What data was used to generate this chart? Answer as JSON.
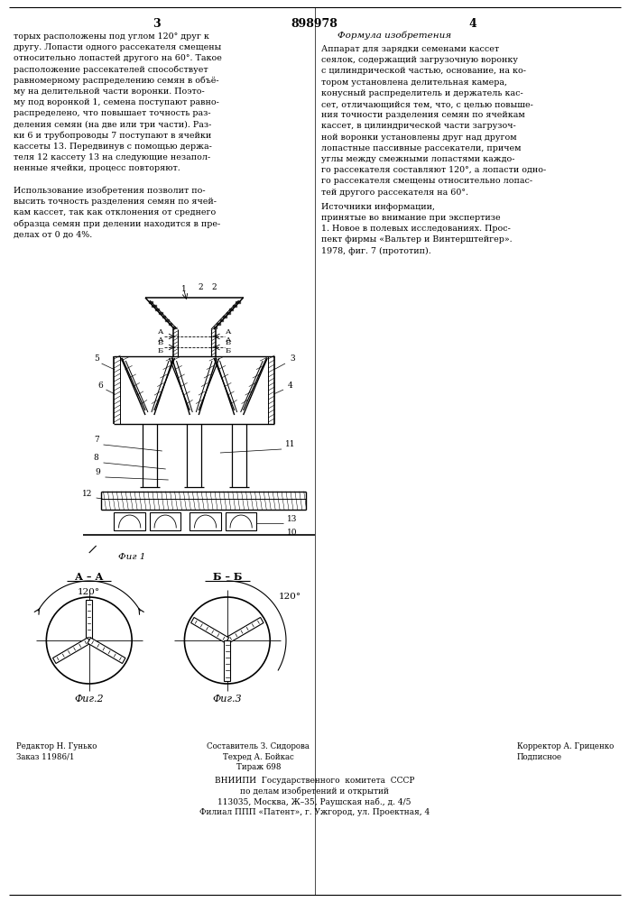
{
  "page_width": 7.07,
  "page_height": 10.0,
  "bg_color": "#ffffff",
  "text_color": "#000000",
  "patent_number": "898978",
  "page_left_number": "3",
  "page_right_number": "4",
  "formula_title": "Формула изобретения",
  "left_text": [
    "торых расположены под углом 120° друг к",
    "другу. Лопасти одного рассекателя смещены",
    "относительно лопастей другого на 60°. Такое",
    "расположение рассекателей способствует",
    "равномерному распределению семян в объё-",
    "му на делительной части воронки. Поэто-",
    "му под воронкой 1, семена поступают равно-",
    "распределено, что повышает точность раз-",
    "деления семян (на две или три части). Раз-",
    "ки 6 и трубопроводы 7 поступают в ячейки",
    "кассеты 13. Передвинув с помощью держа-",
    "теля 12 кассету 13 на следующие незапол-",
    "ненные ячейки, процесс повторяют.",
    "",
    "Использование изобретения позволит по-",
    "высить точность разделения семян по ячей-",
    "кам кассет, так как отклонения от среднего",
    "образца семян при делении находится в пре-",
    "делах от 0 до 4%."
  ],
  "right_text": [
    "Аппарат для зарядки семенами кассет",
    "сеялок, содержащий загрузочную воронку",
    "с цилиндрической частью, основание, на ко-",
    "тором установлена делительная камера,",
    "конусный распределитель и держатель кас-",
    "сет, отличающийся тем, что, с целью повыше-",
    "ния точности разделения семян по ячейкам",
    "кассет, в цилиндрической части загрузоч-",
    "ной воронки установлены друг над другом",
    "лопастные пассивные рассекатели, причем",
    "углы между смежными лопастями каждо-",
    "го рассекателя составляют 120°, а лопасти одно-",
    "го рассекателя смещены относительно лопас-",
    "тей другого рассекателя на 60°."
  ],
  "sources_title": "Источники информации,",
  "sources_text": [
    "принятые во внимание при экспертизе",
    "1. Новое в полевых исследованиях. Прос-",
    "пект фирмы «Вальтер и Винтерштейгер».",
    "1978, фиг. 7 (прототип)."
  ],
  "fig1_caption": "Фиг 1",
  "fig2_caption": "Фиг.2",
  "fig3_caption": "Фиг.3",
  "fig2_label": "А – А",
  "fig3_label": "Б – Б",
  "fig2_angle": "120°",
  "fig3_angle": "120°",
  "bottom_left_text": [
    "Редактор Н. Гунько",
    "Заказ 11986/1"
  ],
  "bottom_center_text": [
    "Составитель З. Сидорова",
    "Техред А. Бойкас",
    "Тираж 698",
    "ВНИИПИ  Государственного  комитета  СССР",
    "по делам изобретений и открытий",
    "113035, Москва, Ж–35, Раушская наб., д. 4/5",
    "Филиал ППП «Патент», г. Ужгород, ул. Проектная, 4"
  ],
  "bottom_right_text": [
    "Корректор А. Гриценко",
    "Подписное"
  ]
}
